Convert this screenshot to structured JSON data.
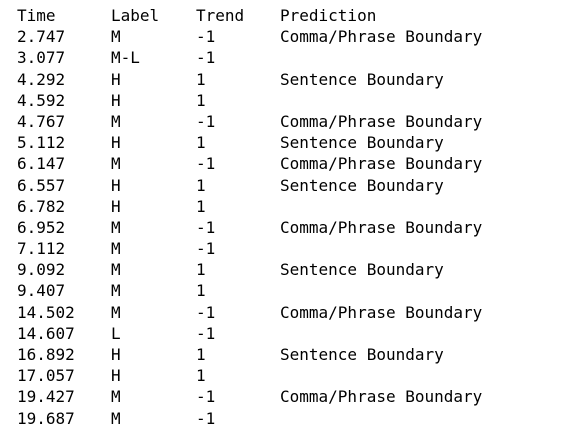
{
  "columns": {
    "time": "Time",
    "label": "Label",
    "trend": "Trend",
    "prediction": "Prediction"
  },
  "rows": [
    {
      "time": "2.747",
      "label": "M",
      "trend": "-1",
      "prediction": "Comma/Phrase Boundary"
    },
    {
      "time": "3.077",
      "label": "M-L",
      "trend": "-1",
      "prediction": ""
    },
    {
      "time": "4.292",
      "label": "H",
      "trend": "1",
      "prediction": "Sentence Boundary"
    },
    {
      "time": "4.592",
      "label": "H",
      "trend": "1",
      "prediction": ""
    },
    {
      "time": "4.767",
      "label": "M",
      "trend": "-1",
      "prediction": "Comma/Phrase Boundary"
    },
    {
      "time": "5.112",
      "label": "H",
      "trend": "1",
      "prediction": "Sentence Boundary"
    },
    {
      "time": "6.147",
      "label": "M",
      "trend": "-1",
      "prediction": "Comma/Phrase Boundary"
    },
    {
      "time": "6.557",
      "label": "H",
      "trend": "1",
      "prediction": "Sentence Boundary"
    },
    {
      "time": "6.782",
      "label": "H",
      "trend": "1",
      "prediction": ""
    },
    {
      "time": "6.952",
      "label": "M",
      "trend": "-1",
      "prediction": "Comma/Phrase Boundary"
    },
    {
      "time": "7.112",
      "label": "M",
      "trend": "-1",
      "prediction": ""
    },
    {
      "time": "9.092",
      "label": "M",
      "trend": "1",
      "prediction": "Sentence Boundary"
    },
    {
      "time": "9.407",
      "label": "M",
      "trend": "1",
      "prediction": ""
    },
    {
      "time": "14.502",
      "label": "M",
      "trend": "-1",
      "prediction": "Comma/Phrase Boundary"
    },
    {
      "time": "14.607",
      "label": "L",
      "trend": "-1",
      "prediction": ""
    },
    {
      "time": "16.892",
      "label": "H",
      "trend": "1",
      "prediction": "Sentence Boundary"
    },
    {
      "time": "17.057",
      "label": "H",
      "trend": "1",
      "prediction": ""
    },
    {
      "time": "19.427",
      "label": "M",
      "trend": "-1",
      "prediction": "Comma/Phrase Boundary"
    },
    {
      "time": "19.687",
      "label": "M",
      "trend": "-1",
      "prediction": ""
    }
  ]
}
